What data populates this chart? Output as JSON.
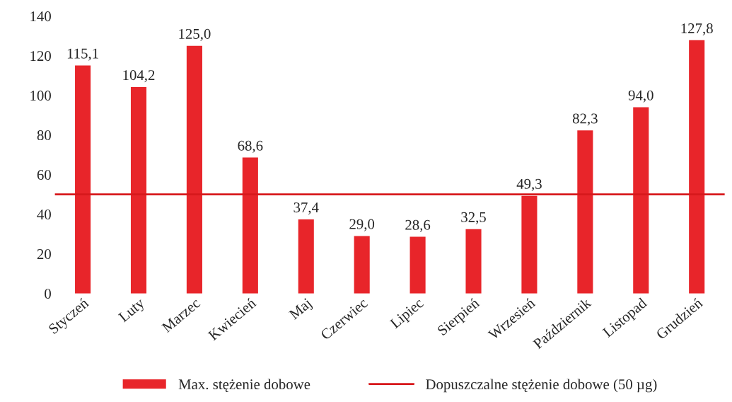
{
  "chart_data": {
    "type": "bar",
    "categories": [
      "Styczeń",
      "Luty",
      "Marzec",
      "Kwiecień",
      "Maj",
      "Czerwiec",
      "Lipiec",
      "Sierpień",
      "Wrzesień",
      "Październik",
      "Listopad",
      "Grudzień"
    ],
    "series": [
      {
        "name": "Max. stężenie dobowe",
        "color": "#e8252a",
        "values": [
          115.1,
          104.2,
          125.0,
          68.6,
          37.4,
          29.0,
          28.6,
          32.5,
          49.3,
          82.3,
          94.0,
          127.8
        ],
        "value_labels": [
          "115,1",
          "104,2",
          "125,0",
          "68,6",
          "37,4",
          "29,0",
          "28,6",
          "32,5",
          "49,3",
          "82,3",
          "94,0",
          "127,8"
        ]
      }
    ],
    "ref_lines": [
      {
        "axis": "y",
        "value": 50,
        "label": "Dopuszczalne stężenie dobowe (50 µg)",
        "color": "#d7191c",
        "line_style": "solid"
      }
    ],
    "ylim": [
      0,
      140
    ],
    "yticks": [
      0,
      20,
      40,
      60,
      80,
      100,
      120,
      140
    ],
    "grid": false,
    "legend": "bottom"
  }
}
